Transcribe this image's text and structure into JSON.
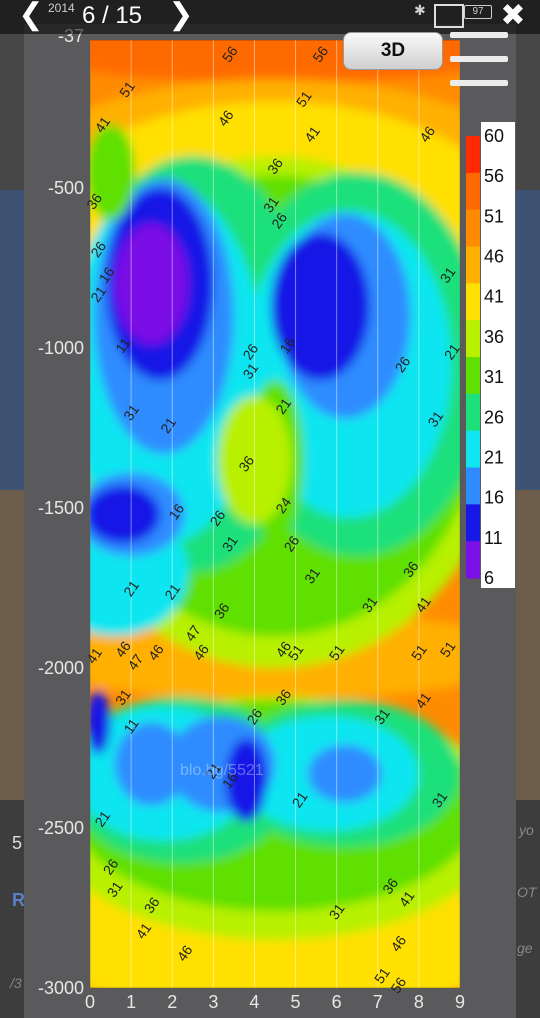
{
  "viewer": {
    "counter": "6 / 15",
    "prev_icon": "chevron-left-icon",
    "next_icon": "chevron-right-icon",
    "close_icon": "close-icon",
    "menu_icon": "hamburger-menu-icon",
    "view_3d_label": "3D",
    "status_text": "2014",
    "battery_text": "97",
    "watermark": "blo.bg/5521"
  },
  "background_edge_text": {
    "left_5": "5",
    "left_r": "R",
    "left_slash": "/3",
    "right_yo": "yo",
    "right_ot": "OT",
    "right_ge": "ge"
  },
  "chart_data": {
    "type": "heatmap",
    "title": "",
    "xlabel": "",
    "ylabel": "",
    "x_ticks": [
      "0",
      "1",
      "2",
      "3",
      "4",
      "5",
      "6",
      "7",
      "8",
      "9"
    ],
    "y_ticks": [
      "-500",
      "-1000",
      "-1500",
      "-2000",
      "-2500",
      "-3000"
    ],
    "y_top_label": "-37",
    "xlim": [
      0,
      9
    ],
    "ylim": [
      -3000,
      -37
    ],
    "colorbar": {
      "ticks": [
        "60",
        "56",
        "51",
        "46",
        "41",
        "36",
        "31",
        "26",
        "21",
        "16",
        "11",
        "6"
      ],
      "colors": [
        "#ff2a00",
        "#ff6a00",
        "#ff8c00",
        "#ffb000",
        "#ffe000",
        "#b8f000",
        "#5fe000",
        "#1ee07a",
        "#10e6f0",
        "#2f8cff",
        "#1818e6",
        "#7a10e6"
      ]
    },
    "levels": [
      6,
      11,
      16,
      21,
      26,
      31,
      36,
      41,
      46,
      51,
      56,
      60
    ],
    "contour_labels": [
      {
        "x": 0.4,
        "y": -310,
        "text": "41"
      },
      {
        "x": 1.0,
        "y": -200,
        "text": "51"
      },
      {
        "x": 3.5,
        "y": -90,
        "text": "56"
      },
      {
        "x": 5.7,
        "y": -90,
        "text": "56"
      },
      {
        "x": 3.4,
        "y": -290,
        "text": "46"
      },
      {
        "x": 5.3,
        "y": -230,
        "text": "51"
      },
      {
        "x": 5.5,
        "y": -340,
        "text": "41"
      },
      {
        "x": 8.3,
        "y": -340,
        "text": "46"
      },
      {
        "x": 0.2,
        "y": -550,
        "text": "36"
      },
      {
        "x": 0.3,
        "y": -700,
        "text": "26"
      },
      {
        "x": 0.5,
        "y": -780,
        "text": "16"
      },
      {
        "x": 0.3,
        "y": -840,
        "text": "21"
      },
      {
        "x": 4.6,
        "y": -440,
        "text": "36"
      },
      {
        "x": 4.5,
        "y": -560,
        "text": "31"
      },
      {
        "x": 4.7,
        "y": -610,
        "text": "26"
      },
      {
        "x": 8.8,
        "y": -780,
        "text": "31"
      },
      {
        "x": 0.9,
        "y": -1000,
        "text": "11"
      },
      {
        "x": 4.9,
        "y": -1000,
        "text": "16"
      },
      {
        "x": 8.9,
        "y": -1020,
        "text": "21"
      },
      {
        "x": 4.0,
        "y": -1020,
        "text": "26"
      },
      {
        "x": 4.0,
        "y": -1080,
        "text": "31"
      },
      {
        "x": 7.7,
        "y": -1060,
        "text": "26"
      },
      {
        "x": 4.8,
        "y": -1190,
        "text": "21"
      },
      {
        "x": 1.1,
        "y": -1210,
        "text": "31"
      },
      {
        "x": 2.0,
        "y": -1250,
        "text": "21"
      },
      {
        "x": 8.5,
        "y": -1230,
        "text": "31"
      },
      {
        "x": 3.9,
        "y": -1370,
        "text": "36"
      },
      {
        "x": 2.2,
        "y": -1520,
        "text": "16"
      },
      {
        "x": 3.2,
        "y": -1540,
        "text": "26"
      },
      {
        "x": 4.8,
        "y": -1500,
        "text": "24"
      },
      {
        "x": 3.5,
        "y": -1620,
        "text": "31"
      },
      {
        "x": 5.0,
        "y": -1620,
        "text": "26"
      },
      {
        "x": 5.5,
        "y": -1720,
        "text": "31"
      },
      {
        "x": 7.9,
        "y": -1700,
        "text": "36"
      },
      {
        "x": 1.1,
        "y": -1760,
        "text": "21"
      },
      {
        "x": 2.1,
        "y": -1770,
        "text": "21"
      },
      {
        "x": 3.3,
        "y": -1830,
        "text": "36"
      },
      {
        "x": 6.9,
        "y": -1810,
        "text": "31"
      },
      {
        "x": 8.2,
        "y": -1810,
        "text": "41"
      },
      {
        "x": 2.6,
        "y": -1900,
        "text": "47"
      },
      {
        "x": 0.2,
        "y": -1970,
        "text": "41"
      },
      {
        "x": 0.9,
        "y": -1950,
        "text": "46"
      },
      {
        "x": 1.2,
        "y": -1990,
        "text": "47"
      },
      {
        "x": 1.7,
        "y": -1960,
        "text": "46"
      },
      {
        "x": 2.8,
        "y": -1960,
        "text": "46"
      },
      {
        "x": 4.8,
        "y": -1950,
        "text": "46"
      },
      {
        "x": 5.1,
        "y": -1960,
        "text": "51"
      },
      {
        "x": 6.1,
        "y": -1960,
        "text": "51"
      },
      {
        "x": 8.1,
        "y": -1960,
        "text": "51"
      },
      {
        "x": 8.8,
        "y": -1950,
        "text": "51"
      },
      {
        "x": 0.9,
        "y": -2100,
        "text": "31"
      },
      {
        "x": 4.8,
        "y": -2100,
        "text": "36"
      },
      {
        "x": 8.2,
        "y": -2110,
        "text": "41"
      },
      {
        "x": 1.1,
        "y": -2190,
        "text": "11"
      },
      {
        "x": 4.1,
        "y": -2160,
        "text": "26"
      },
      {
        "x": 7.2,
        "y": -2160,
        "text": "31"
      },
      {
        "x": 3.1,
        "y": -2330,
        "text": "21"
      },
      {
        "x": 3.5,
        "y": -2360,
        "text": "16"
      },
      {
        "x": 5.2,
        "y": -2420,
        "text": "21"
      },
      {
        "x": 8.6,
        "y": -2420,
        "text": "31"
      },
      {
        "x": 0.4,
        "y": -2480,
        "text": "21"
      },
      {
        "x": 0.6,
        "y": -2630,
        "text": "26"
      },
      {
        "x": 0.7,
        "y": -2700,
        "text": "31"
      },
      {
        "x": 1.6,
        "y": -2750,
        "text": "36"
      },
      {
        "x": 7.4,
        "y": -2690,
        "text": "36"
      },
      {
        "x": 7.8,
        "y": -2730,
        "text": "41"
      },
      {
        "x": 6.1,
        "y": -2770,
        "text": "31"
      },
      {
        "x": 1.4,
        "y": -2830,
        "text": "41"
      },
      {
        "x": 2.4,
        "y": -2900,
        "text": "46"
      },
      {
        "x": 7.6,
        "y": -2870,
        "text": "46"
      },
      {
        "x": 7.2,
        "y": -2970,
        "text": "51"
      },
      {
        "x": 7.6,
        "y": -3000,
        "text": "56"
      }
    ]
  }
}
